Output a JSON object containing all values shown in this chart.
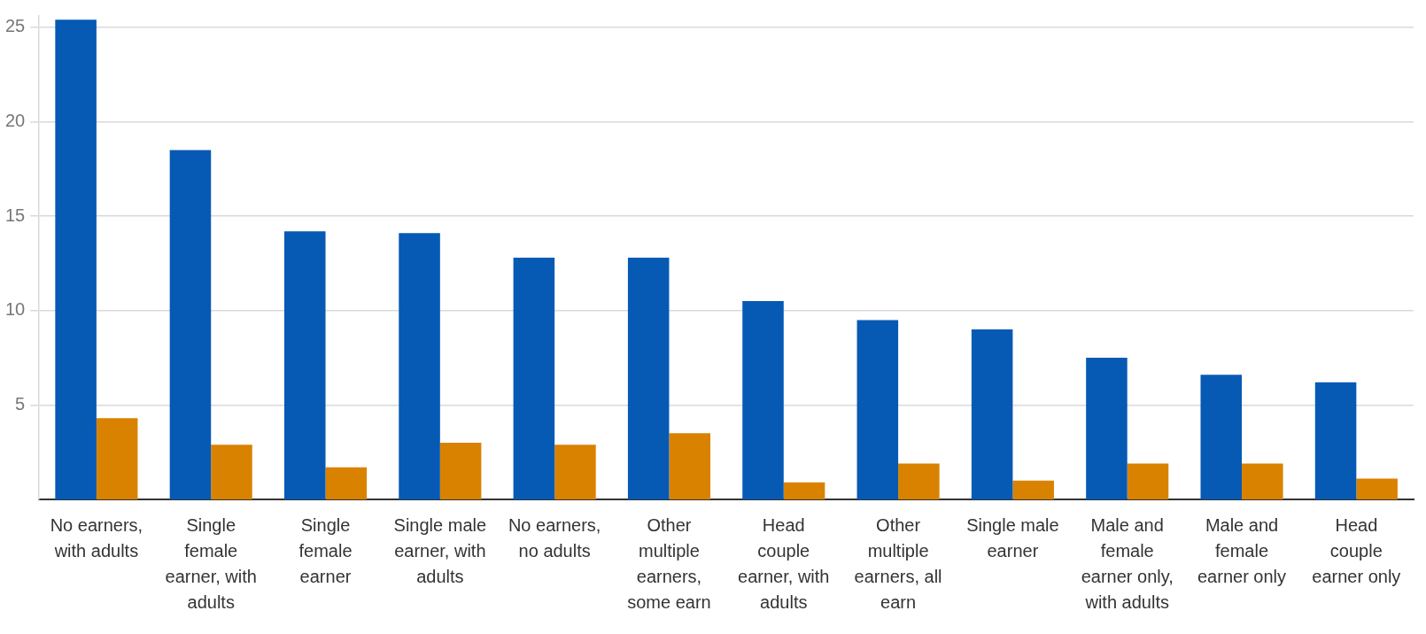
{
  "chart_data": {
    "type": "bar",
    "categories": [
      "No earners, with adults",
      "Single female earner, with adults",
      "Single female earner",
      "Single male earner, with adults",
      "No earners, no adults",
      "Other multiple earners, some earn",
      "Head couple earner, with adults",
      "Other multiple earners, all earn",
      "Single male earner",
      "Male and female earner only, with adults",
      "Male and female earner only",
      "Head couple earner only"
    ],
    "series": [
      {
        "color": "#065ab4",
        "values": [
          25.4,
          18.5,
          14.2,
          14.1,
          12.8,
          12.8,
          10.5,
          9.5,
          9.0,
          7.5,
          6.6,
          6.2
        ]
      },
      {
        "color": "#d98200",
        "values": [
          4.3,
          2.9,
          1.7,
          3.0,
          2.9,
          3.5,
          0.9,
          1.9,
          1.0,
          1.9,
          1.9,
          1.1
        ]
      }
    ],
    "ylim": [
      0,
      25.6
    ],
    "yticks": [
      5,
      10,
      15,
      20,
      25
    ],
    "grid": "y",
    "legend": false
  }
}
